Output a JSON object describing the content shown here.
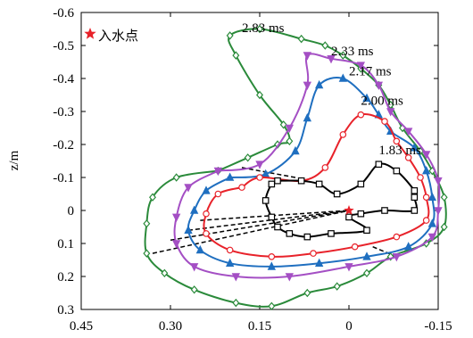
{
  "chart_data": {
    "type": "line",
    "xlim": [
      0.45,
      -0.15
    ],
    "ylim": [
      -0.6,
      0.3
    ],
    "y_inverted": true,
    "x_reversed": true,
    "xlabel": "",
    "ylabel": "z/m",
    "xticks": [
      "0.45",
      "0.30",
      "0.15",
      "0",
      "-0.15"
    ],
    "yticks": [
      "-0.6",
      "-0.5",
      "-0.4",
      "-0.3",
      "-0.2",
      "-0.1",
      "0",
      "0.1",
      "0.2",
      "0.3"
    ],
    "legend": {
      "label": "入水点",
      "marker": "star",
      "color": "#e8222a",
      "placement": "top-left"
    },
    "entry_point": {
      "x": 0.0,
      "y": 0.0
    },
    "series": [
      {
        "name": "1.83 ms",
        "color": "#000000",
        "marker": "square",
        "points": [
          [
            0.12,
            -0.09
          ],
          [
            0.08,
            -0.09
          ],
          [
            0.05,
            -0.08
          ],
          [
            0.02,
            -0.05
          ],
          [
            -0.02,
            -0.08
          ],
          [
            -0.05,
            -0.14
          ],
          [
            -0.08,
            -0.12
          ],
          [
            -0.11,
            -0.06
          ],
          [
            -0.11,
            -0.04
          ],
          [
            -0.11,
            0.0
          ],
          [
            -0.06,
            0.0
          ],
          [
            -0.02,
            0.01
          ],
          [
            0.0,
            0.02
          ],
          [
            -0.03,
            0.06
          ],
          [
            0.03,
            0.07
          ],
          [
            0.07,
            0.08
          ],
          [
            0.1,
            0.07
          ],
          [
            0.12,
            0.05
          ],
          [
            0.13,
            0.02
          ],
          [
            0.14,
            -0.03
          ],
          [
            0.13,
            -0.08
          ],
          [
            0.12,
            -0.09
          ]
        ],
        "closed": true
      },
      {
        "name": "2.00 ms",
        "color": "#e8222a",
        "marker": "circle",
        "points": [
          [
            0.18,
            -0.07
          ],
          [
            0.15,
            -0.1
          ],
          [
            0.08,
            -0.09
          ],
          [
            0.04,
            -0.13
          ],
          [
            0.01,
            -0.23
          ],
          [
            -0.02,
            -0.29
          ],
          [
            -0.06,
            -0.27
          ],
          [
            -0.08,
            -0.21
          ],
          [
            -0.1,
            -0.16
          ],
          [
            -0.12,
            -0.1
          ],
          [
            -0.13,
            -0.04
          ],
          [
            -0.13,
            0.03
          ],
          [
            -0.08,
            0.08
          ],
          [
            -0.01,
            0.11
          ],
          [
            0.06,
            0.13
          ],
          [
            0.13,
            0.14
          ],
          [
            0.2,
            0.12
          ],
          [
            0.24,
            0.07
          ],
          [
            0.24,
            0.01
          ],
          [
            0.22,
            -0.05
          ],
          [
            0.18,
            -0.07
          ]
        ],
        "closed": true
      },
      {
        "name": "2.17 ms",
        "color": "#1f6fc0",
        "marker": "triangle",
        "points": [
          [
            0.2,
            -0.1
          ],
          [
            0.14,
            -0.11
          ],
          [
            0.09,
            -0.18
          ],
          [
            0.07,
            -0.28
          ],
          [
            0.05,
            -0.38
          ],
          [
            0.01,
            -0.4
          ],
          [
            -0.03,
            -0.34
          ],
          [
            -0.05,
            -0.29
          ],
          [
            -0.07,
            -0.24
          ],
          [
            -0.11,
            -0.19
          ],
          [
            -0.13,
            -0.12
          ],
          [
            -0.14,
            -0.04
          ],
          [
            -0.14,
            0.04
          ],
          [
            -0.1,
            0.11
          ],
          [
            -0.03,
            0.14
          ],
          [
            0.05,
            0.16
          ],
          [
            0.13,
            0.17
          ],
          [
            0.2,
            0.16
          ],
          [
            0.25,
            0.12
          ],
          [
            0.27,
            0.06
          ],
          [
            0.26,
            0.0
          ],
          [
            0.24,
            -0.06
          ],
          [
            0.2,
            -0.1
          ]
        ],
        "closed": true
      },
      {
        "name": "2.33 ms",
        "color": "#a44fc4",
        "marker": "triangle-down",
        "points": [
          [
            0.22,
            -0.12
          ],
          [
            0.15,
            -0.14
          ],
          [
            0.1,
            -0.25
          ],
          [
            0.07,
            -0.38
          ],
          [
            0.07,
            -0.47
          ],
          [
            0.03,
            -0.46
          ],
          [
            -0.02,
            -0.44
          ],
          [
            -0.05,
            -0.38
          ],
          [
            -0.07,
            -0.3
          ],
          [
            -0.1,
            -0.24
          ],
          [
            -0.13,
            -0.17
          ],
          [
            -0.15,
            -0.09
          ],
          [
            -0.15,
            0.0
          ],
          [
            -0.14,
            0.08
          ],
          [
            -0.08,
            0.14
          ],
          [
            0.0,
            0.17
          ],
          [
            0.1,
            0.2
          ],
          [
            0.19,
            0.2
          ],
          [
            0.26,
            0.17
          ],
          [
            0.29,
            0.1
          ],
          [
            0.29,
            0.02
          ],
          [
            0.27,
            -0.07
          ],
          [
            0.22,
            -0.12
          ]
        ],
        "closed": true
      },
      {
        "name": "2.83 ms",
        "color": "#2a8a3a",
        "marker": "diamond",
        "points": [
          [
            0.22,
            -0.12
          ],
          [
            0.17,
            -0.16
          ],
          [
            0.12,
            -0.2
          ],
          [
            0.1,
            -0.21
          ],
          [
            0.11,
            -0.26
          ],
          [
            0.15,
            -0.35
          ],
          [
            0.19,
            -0.47
          ],
          [
            0.2,
            -0.53
          ],
          [
            0.15,
            -0.55
          ],
          [
            0.08,
            -0.52
          ],
          [
            0.04,
            -0.5
          ],
          [
            0.01,
            -0.47
          ],
          [
            -0.02,
            -0.43
          ],
          [
            -0.05,
            -0.38
          ],
          [
            -0.07,
            -0.32
          ],
          [
            -0.09,
            -0.25
          ],
          [
            -0.12,
            -0.18
          ],
          [
            -0.14,
            -0.12
          ],
          [
            -0.16,
            -0.04
          ],
          [
            -0.16,
            0.05
          ],
          [
            -0.13,
            0.1
          ],
          [
            -0.07,
            0.14
          ],
          [
            -0.03,
            0.19
          ],
          [
            0.02,
            0.23
          ],
          [
            0.07,
            0.25
          ],
          [
            0.13,
            0.29
          ],
          [
            0.19,
            0.28
          ],
          [
            0.26,
            0.24
          ],
          [
            0.31,
            0.19
          ],
          [
            0.34,
            0.13
          ],
          [
            0.34,
            0.04
          ],
          [
            0.33,
            -0.04
          ],
          [
            0.29,
            -0.1
          ],
          [
            0.22,
            -0.12
          ]
        ],
        "closed": true
      }
    ],
    "dashed_lines": [
      [
        [
          0.25,
          0.03
        ],
        [
          0.0,
          0.0
        ]
      ],
      [
        [
          0.27,
          0.06
        ],
        [
          0.0,
          0.0
        ]
      ],
      [
        [
          0.3,
          0.09
        ],
        [
          0.0,
          0.0
        ]
      ],
      [
        [
          0.33,
          0.13
        ],
        [
          0.0,
          0.0
        ]
      ],
      [
        [
          0.18,
          -0.13
        ],
        [
          0.09,
          -0.1
        ]
      ],
      [
        [
          -0.04,
          0.11
        ],
        [
          -0.08,
          0.14
        ]
      ]
    ],
    "annotations": [
      {
        "text": "2.83 ms",
        "x": 0.18,
        "y": -0.54
      },
      {
        "text": "2.33 ms",
        "x": 0.03,
        "y": -0.47
      },
      {
        "text": "2.17 ms",
        "x": 0.0,
        "y": -0.41
      },
      {
        "text": "2.00 ms",
        "x": -0.02,
        "y": -0.32
      },
      {
        "text": "1.83 ms",
        "x": -0.05,
        "y": -0.17
      }
    ]
  }
}
